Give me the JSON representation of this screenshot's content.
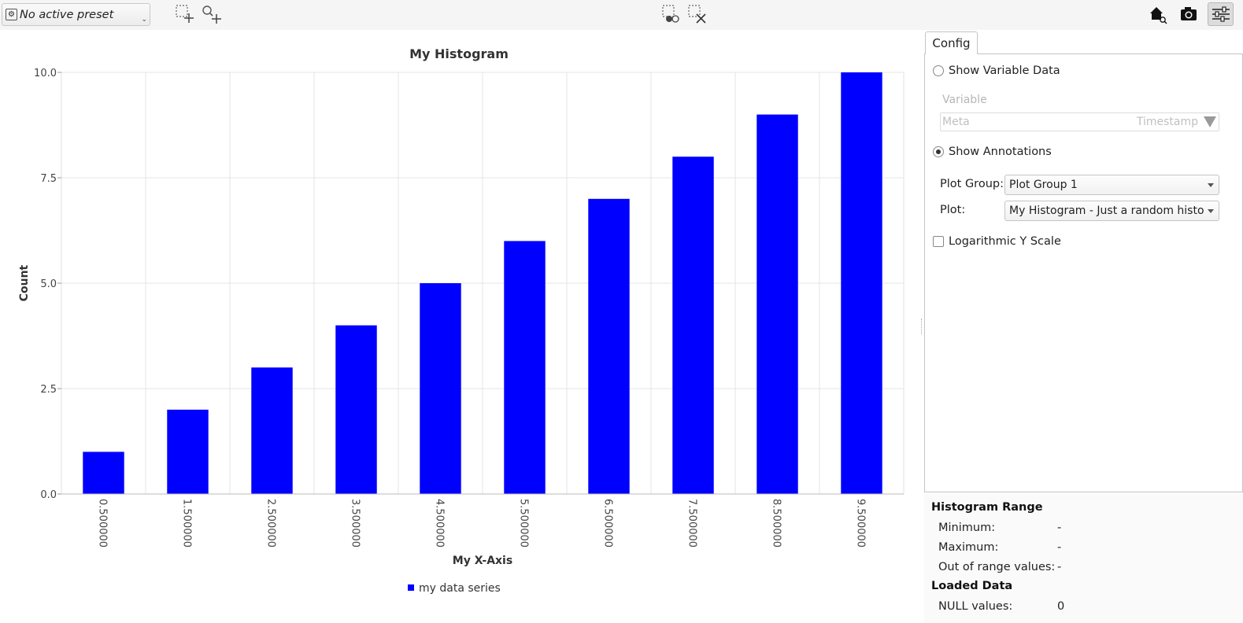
{
  "toolbar": {
    "preset_label": "No active preset",
    "icons": [
      "select-area-add-icon",
      "zoom-add-icon",
      "select-point-icon",
      "clear-selection-icon",
      "home-zoom-icon",
      "camera-icon",
      "settings-sliders-icon"
    ]
  },
  "chart_data": {
    "type": "bar",
    "title": "My Histogram",
    "xlabel": "My X-Axis",
    "ylabel": "Count",
    "categories": [
      "0.500000",
      "1.500000",
      "2.500000",
      "3.500000",
      "4.500000",
      "5.500000",
      "6.500000",
      "7.500000",
      "8.500000",
      "9.500000"
    ],
    "series": [
      {
        "name": "my data series",
        "color": "#0000ff",
        "values": [
          1,
          2,
          3,
          4,
          5,
          6,
          7,
          8,
          9,
          10
        ]
      }
    ],
    "ylim": [
      0,
      10
    ],
    "yticks": [
      "0.0",
      "2.5",
      "5.0",
      "7.5",
      "10.0"
    ],
    "grid": true,
    "legend": "bottom-center"
  },
  "panel": {
    "tab_label": "Config",
    "show_variable_label": "Show Variable Data",
    "variable_label": "Variable",
    "variable_value": "Meta",
    "variable_secondary": "Timestamp",
    "show_annotations_label": "Show Annotations",
    "plot_group_label": "Plot Group:",
    "plot_group_value": "Plot Group 1",
    "plot_label": "Plot:",
    "plot_value": "My Histogram - Just a random histogram",
    "log_scale_label": "Logarithmic Y Scale"
  },
  "info": {
    "range_title": "Histogram Range",
    "minimum_label": "Minimum:",
    "minimum_value": "-",
    "maximum_label": "Maximum:",
    "maximum_value": "-",
    "out_of_range_label": "Out of range values:",
    "out_of_range_value": "-",
    "loaded_title": "Loaded Data",
    "null_label": "NULL values:",
    "null_value": "0"
  }
}
